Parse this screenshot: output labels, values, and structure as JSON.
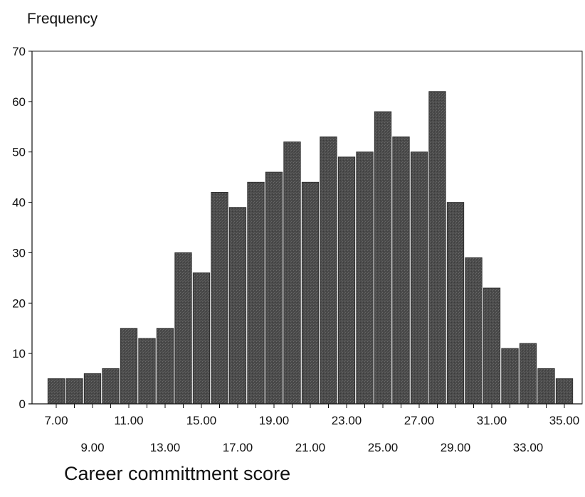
{
  "chart_data": {
    "type": "bar",
    "ylabel": "Frequency",
    "xlabel": "Career committment score",
    "ylim": [
      0,
      70
    ],
    "yticks": [
      0,
      10,
      20,
      30,
      40,
      50,
      60,
      70
    ],
    "x_tick_labels_row1": [
      "7.00",
      "11.00",
      "15.00",
      "19.00",
      "23.00",
      "27.00",
      "31.00",
      "35.00"
    ],
    "x_tick_labels_row2": [
      "9.00",
      "13.00",
      "17.00",
      "21.00",
      "25.00",
      "29.00",
      "33.00"
    ],
    "categories": [
      7,
      8,
      9,
      10,
      11,
      12,
      13,
      14,
      15,
      16,
      17,
      18,
      19,
      20,
      21,
      22,
      23,
      24,
      25,
      26,
      27,
      28,
      29,
      30,
      31,
      32,
      33,
      34,
      35
    ],
    "values": [
      5,
      5,
      6,
      7,
      15,
      13,
      15,
      30,
      26,
      42,
      39,
      44,
      46,
      52,
      44,
      53,
      49,
      50,
      58,
      53,
      50,
      62,
      40,
      29,
      23,
      11,
      12,
      7,
      5
    ],
    "bar_color": "#555555",
    "bar_edge_color": "#ffffff",
    "grid": false
  }
}
